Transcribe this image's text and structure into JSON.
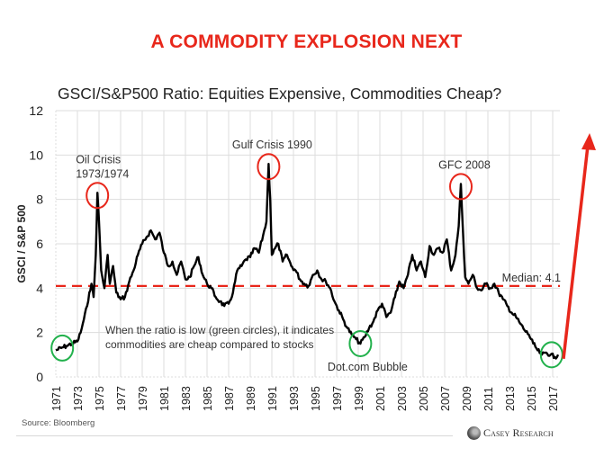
{
  "headline": "A COMMODITY EXPLOSION NEXT",
  "colors": {
    "headline": "#e8271b",
    "series": "#000000",
    "median_line": "#e8271b",
    "peak_circle": "#e8271b",
    "trough_circle": "#22b14c",
    "arrow": "#e8271b",
    "grid": "#dddddd"
  },
  "source": "Source: Bloomberg",
  "logo_text": "Casey Research",
  "chart_data": {
    "type": "line",
    "title": "GSCI/S&P500 Ratio: Equities Expensive, Commodities Cheap?",
    "xlabel": "",
    "ylabel": "GSCI / S&P 500",
    "xlim": [
      1971,
      2017.5
    ],
    "ylim": [
      0,
      12
    ],
    "grid": true,
    "y_ticks": [
      "0",
      "2",
      "4",
      "6",
      "8",
      "10",
      "12"
    ],
    "x_ticks": [
      "1971",
      "1973",
      "1975",
      "1977",
      "1979",
      "1981",
      "1983",
      "1985",
      "1987",
      "1989",
      "1991",
      "1993",
      "1995",
      "1997",
      "1999",
      "2001",
      "2003",
      "2005",
      "2007",
      "2009",
      "2011",
      "2013",
      "2015",
      "2017"
    ],
    "series": [
      {
        "name": "GSCI/S&P500 Ratio",
        "x": [
          1971.0,
          1971.5,
          1972.0,
          1972.5,
          1973.0,
          1973.3,
          1973.6,
          1973.9,
          1974.1,
          1974.3,
          1974.5,
          1974.7,
          1974.85,
          1975.0,
          1975.2,
          1975.5,
          1975.8,
          1976.0,
          1976.3,
          1976.6,
          1977.0,
          1977.4,
          1977.8,
          1978.2,
          1978.6,
          1979.0,
          1979.4,
          1979.8,
          1980.2,
          1980.6,
          1981.0,
          1981.4,
          1981.8,
          1982.2,
          1982.6,
          1983.0,
          1983.4,
          1983.8,
          1984.2,
          1984.6,
          1985.0,
          1985.4,
          1985.8,
          1986.2,
          1986.6,
          1987.0,
          1987.4,
          1987.8,
          1988.2,
          1988.6,
          1989.0,
          1989.4,
          1989.8,
          1990.2,
          1990.5,
          1990.7,
          1990.85,
          1991.0,
          1991.3,
          1991.6,
          1992.0,
          1992.4,
          1992.8,
          1993.2,
          1993.6,
          1994.0,
          1994.4,
          1994.8,
          1995.2,
          1995.6,
          1996.0,
          1996.4,
          1996.8,
          1997.2,
          1997.6,
          1998.0,
          1998.4,
          1998.8,
          1999.2,
          1999.6,
          2000.0,
          2000.4,
          2000.8,
          2001.2,
          2001.6,
          2002.0,
          2002.4,
          2002.8,
          2003.2,
          2003.6,
          2004.0,
          2004.4,
          2004.8,
          2005.2,
          2005.6,
          2006.0,
          2006.4,
          2006.8,
          2007.2,
          2007.6,
          2008.0,
          2008.3,
          2008.5,
          2008.7,
          2008.9,
          2009.2,
          2009.6,
          2010.0,
          2010.4,
          2010.8,
          2011.2,
          2011.6,
          2012.0,
          2012.4,
          2012.8,
          2013.2,
          2013.6,
          2014.0,
          2014.4,
          2014.8,
          2015.2,
          2015.6,
          2016.0,
          2016.4,
          2016.8,
          2017.2,
          2017.5
        ],
        "y": [
          1.2,
          1.3,
          1.4,
          1.5,
          1.6,
          2.0,
          2.6,
          3.2,
          3.8,
          4.2,
          3.6,
          5.5,
          8.3,
          7.0,
          4.8,
          4.0,
          5.5,
          4.2,
          5.0,
          3.8,
          3.5,
          3.6,
          4.3,
          4.8,
          5.5,
          6.0,
          6.3,
          6.6,
          6.2,
          6.5,
          5.6,
          5.0,
          5.2,
          4.6,
          5.2,
          4.4,
          4.5,
          5.0,
          5.4,
          4.6,
          4.2,
          4.0,
          3.6,
          3.4,
          3.2,
          3.3,
          3.8,
          4.8,
          5.0,
          5.3,
          5.4,
          5.8,
          5.6,
          6.4,
          7.0,
          9.6,
          8.0,
          5.5,
          5.8,
          6.0,
          5.2,
          5.5,
          5.0,
          4.8,
          4.4,
          4.2,
          4.1,
          4.6,
          4.8,
          4.4,
          4.3,
          4.0,
          3.4,
          3.0,
          2.6,
          2.2,
          1.9,
          1.7,
          1.5,
          1.8,
          2.2,
          2.5,
          3.0,
          3.3,
          2.7,
          2.9,
          3.6,
          4.3,
          4.0,
          4.6,
          5.5,
          4.8,
          5.2,
          4.5,
          5.9,
          5.5,
          5.8,
          5.6,
          6.2,
          4.8,
          5.5,
          6.8,
          8.7,
          6.5,
          4.5,
          4.2,
          4.6,
          4.0,
          3.9,
          4.2,
          4.0,
          4.2,
          3.8,
          3.5,
          3.2,
          2.9,
          2.7,
          2.4,
          2.1,
          1.9,
          1.5,
          1.2,
          1.0,
          1.1,
          1.0,
          0.9,
          1.0
        ]
      }
    ],
    "reference_lines": [
      {
        "type": "horizontal",
        "y": 4.1,
        "label": "Median: 4.1",
        "style": "dashed"
      }
    ],
    "annotations": [
      {
        "label_lines": [
          "Oil Crisis",
          "1973/1974"
        ],
        "x": 1974.85,
        "y": 8.3,
        "marker": "peak-circle"
      },
      {
        "label_lines": [
          "Gulf Crisis 1990"
        ],
        "x": 1990.7,
        "y": 9.6,
        "marker": "peak-circle"
      },
      {
        "label_lines": [
          "GFC 2008"
        ],
        "x": 2008.5,
        "y": 8.7,
        "marker": "peak-circle"
      },
      {
        "label_lines": [
          "Dot.com Bubble"
        ],
        "x": 1999.2,
        "y": 1.5,
        "marker": "trough-circle"
      },
      {
        "label_lines": [],
        "x": 1971.6,
        "y": 1.3,
        "marker": "trough-circle"
      },
      {
        "label_lines": [],
        "x": 2016.9,
        "y": 1.0,
        "marker": "trough-circle"
      }
    ],
    "note_lines": [
      "When the ratio is low (green circles), it indicates",
      "commodities are cheap compared to stocks"
    ],
    "projection_arrow": {
      "from": {
        "x": 2017.5,
        "y": 0.9
      },
      "to_label": "upward explosion"
    }
  }
}
